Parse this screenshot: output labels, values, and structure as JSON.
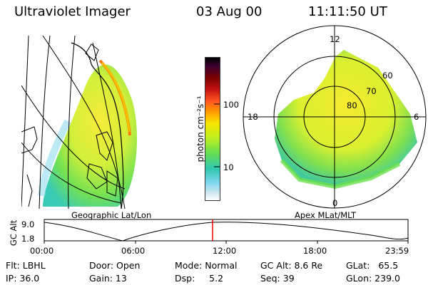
{
  "header": {
    "instrument": "Ultraviolet Imager",
    "date": "03 Aug 00",
    "time": "11:11:50 UT"
  },
  "left_panel": {
    "label": "Geographic Lat/Lon"
  },
  "right_panel": {
    "label": "Apex MLat/MLT",
    "mlt_labels": [
      "12",
      "18",
      "6",
      "0"
    ],
    "mlat_labels": [
      "60",
      "70",
      "80"
    ]
  },
  "colorbar": {
    "unit_label": "photon cm⁻²s⁻¹",
    "ticks": [
      "100",
      "10"
    ],
    "colors": [
      "#000000",
      "#3a0030",
      "#7a0000",
      "#c01010",
      "#ff5020",
      "#ff9a00",
      "#f7e600",
      "#c0f020",
      "#6ce04a",
      "#30c8b0",
      "#80d8f0",
      "#d0e8f0",
      "#ffffff"
    ]
  },
  "altitude_plot": {
    "ylabel": "GC Alt",
    "y_ticks": [
      "9.0",
      "1.8"
    ],
    "x_ticks": [
      "00:00",
      "06:00",
      "12:00",
      "18:00",
      "23:59"
    ],
    "current_time_marker_color": "#ff0000"
  },
  "info": {
    "flt": "Flt: LBHL",
    "ip": "IP: 36.0",
    "door": "Door: Open",
    "gain": "Gain: 13",
    "mode": "Mode: Normal",
    "dsp": "Dsp:     5.2",
    "gc_alt": "GC Alt: 8.6 Re",
    "seq": "Seq: 39",
    "glat": "GLat:   65.5",
    "glon": "GLon: 239.0"
  }
}
